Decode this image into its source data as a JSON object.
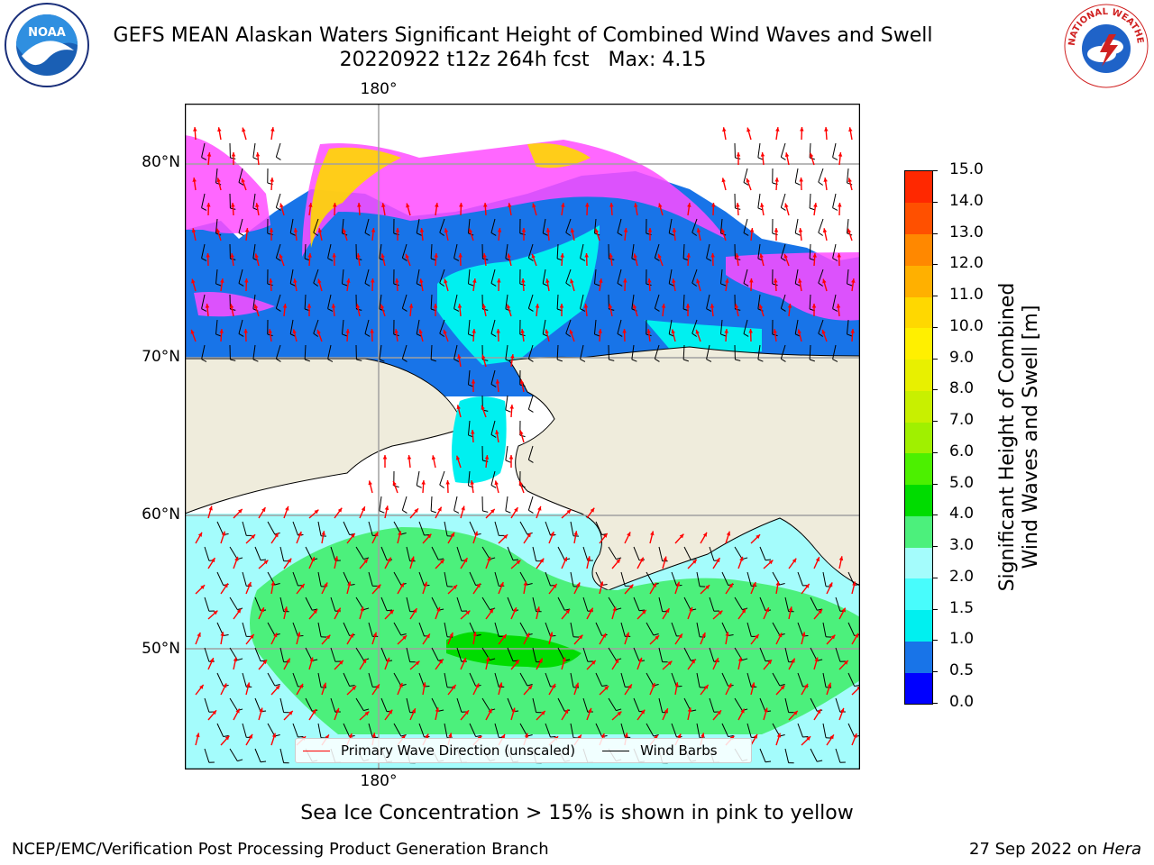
{
  "header": {
    "title_line1": "GEFS MEAN Alaskan Waters Significant Height of Combined Wind Waves and Swell",
    "title_line2": "20220922 t12z 264h fcst   Max: 4.15"
  },
  "logos": {
    "left": {
      "icon": "noaa-logo-icon",
      "text": "NOAA"
    },
    "right": {
      "icon": "nws-logo-icon",
      "text": "NATIONAL WEATHER SERVICE"
    }
  },
  "map": {
    "lat_labels": [
      "80°N",
      "70°N",
      "60°N",
      "50°N"
    ],
    "lon_label_top": "180°",
    "lon_label_bottom": "180°",
    "colors": {
      "land": "#efecdc",
      "ocean_low": "#1874e8",
      "ocean_mid": "#00f0f0",
      "ocean_light": "#a4fcfc",
      "ocean_green": "#4cf07c",
      "ocean_green_dark": "#00dc00",
      "ice_pink": "#ff4cff",
      "ice_yellow": "#ffd800",
      "arrow": "#ff0000",
      "barb": "#000000"
    }
  },
  "legend": {
    "items": [
      {
        "label": "Primary Wave Direction (unscaled)",
        "color": "#ff0000"
      },
      {
        "label": "Wind Barbs",
        "color": "#000000"
      }
    ]
  },
  "colorbar": {
    "label_line1": "Significant Height of Combined",
    "label_line2": "Wind Waves and Swell [m]",
    "ticks": [
      "0.0",
      "0.5",
      "1.0",
      "1.5",
      "2.0",
      "3.0",
      "4.0",
      "5.0",
      "6.0",
      "7.0",
      "8.0",
      "9.0",
      "10.0",
      "11.0",
      "12.0",
      "13.0",
      "14.0",
      "15.0"
    ],
    "colors": [
      "#0000ff",
      "#1874e8",
      "#00f0f0",
      "#48fcfc",
      "#a4fcfc",
      "#4cf07c",
      "#00dc00",
      "#4cf000",
      "#a0f000",
      "#c8f000",
      "#e8f000",
      "#fff000",
      "#ffd800",
      "#ffb000",
      "#ff8800",
      "#ff5000",
      "#ff2800",
      "#ff0000"
    ]
  },
  "footer": {
    "note": "Sea Ice Concentration > 15% is shown in pink to yellow",
    "left": "NCEP/EMC/Verification Post Processing Product Generation Branch",
    "right_date": "27 Sep 2022 on ",
    "right_host": "Hera"
  }
}
